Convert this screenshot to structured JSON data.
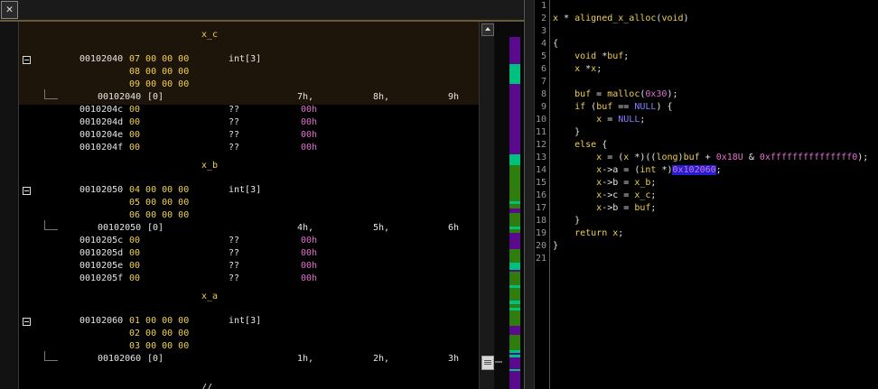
{
  "toolbar": {
    "close_icon": "close-icon",
    "close_glyph": "✕"
  },
  "listing": {
    "structs": [
      {
        "label": "x_c",
        "address": "00102040",
        "bytes": [
          "07 00 00 00",
          "08 00 00 00",
          "09 00 00 00"
        ],
        "type": "int[3]",
        "elem_addr": "00102040",
        "elem_index": "[0]",
        "values": [
          "7h,",
          "8h,",
          "9h"
        ],
        "pad": [
          {
            "addr": "0010204c",
            "byte": "00",
            "q": "??",
            "val": "00h"
          },
          {
            "addr": "0010204d",
            "byte": "00",
            "q": "??",
            "val": "00h"
          },
          {
            "addr": "0010204e",
            "byte": "00",
            "q": "??",
            "val": "00h"
          },
          {
            "addr": "0010204f",
            "byte": "00",
            "q": "??",
            "val": "00h"
          }
        ]
      },
      {
        "label": "x_b",
        "address": "00102050",
        "bytes": [
          "04 00 00 00",
          "05 00 00 00",
          "06 00 00 00"
        ],
        "type": "int[3]",
        "elem_addr": "00102050",
        "elem_index": "[0]",
        "values": [
          "4h,",
          "5h,",
          "6h"
        ],
        "pad": [
          {
            "addr": "0010205c",
            "byte": "00",
            "q": "??",
            "val": "00h"
          },
          {
            "addr": "0010205d",
            "byte": "00",
            "q": "??",
            "val": "00h"
          },
          {
            "addr": "0010205e",
            "byte": "00",
            "q": "??",
            "val": "00h"
          },
          {
            "addr": "0010205f",
            "byte": "00",
            "q": "??",
            "val": "00h"
          }
        ]
      },
      {
        "label": "x_a",
        "address": "00102060",
        "bytes": [
          "01 00 00 00",
          "02 00 00 00",
          "03 00 00 00"
        ],
        "type": "int[3]",
        "elem_addr": "00102060",
        "elem_index": "[0]",
        "values": [
          "1h,",
          "2h,",
          "3h"
        ],
        "pad": []
      }
    ],
    "trailing": "//"
  },
  "overview_colors": {
    "base": "#5a0a8c",
    "green": "#2e7d0e",
    "teal": "#00c080"
  },
  "decompiler": {
    "lines": [
      {
        "n": "1",
        "t": ""
      },
      {
        "n": "2",
        "t": "x * aligned_x_alloc(void)"
      },
      {
        "n": "3",
        "t": ""
      },
      {
        "n": "4",
        "t": "{"
      },
      {
        "n": "5",
        "t": "    void *buf;"
      },
      {
        "n": "6",
        "t": "    x *x;"
      },
      {
        "n": "7",
        "t": ""
      },
      {
        "n": "8",
        "t": "    buf = malloc(0x30);"
      },
      {
        "n": "9",
        "t": "    if (buf == NULL) {"
      },
      {
        "n": "10",
        "t": "        x = NULL;"
      },
      {
        "n": "11",
        "t": "    }"
      },
      {
        "n": "12",
        "t": "    else {"
      },
      {
        "n": "13",
        "t": "        x = (x *)((long)buf + 0x18U & 0xfffffffffffffff0);"
      },
      {
        "n": "14",
        "t": "        x->a = (int *)0x102060;"
      },
      {
        "n": "15",
        "t": "        x->b = x_b;"
      },
      {
        "n": "16",
        "t": "        x->c = x_c;"
      },
      {
        "n": "17",
        "t": "        x->b = buf;"
      },
      {
        "n": "18",
        "t": "    }"
      },
      {
        "n": "19",
        "t": "    return x;"
      },
      {
        "n": "20",
        "t": "}"
      },
      {
        "n": "21",
        "t": ""
      }
    ]
  }
}
